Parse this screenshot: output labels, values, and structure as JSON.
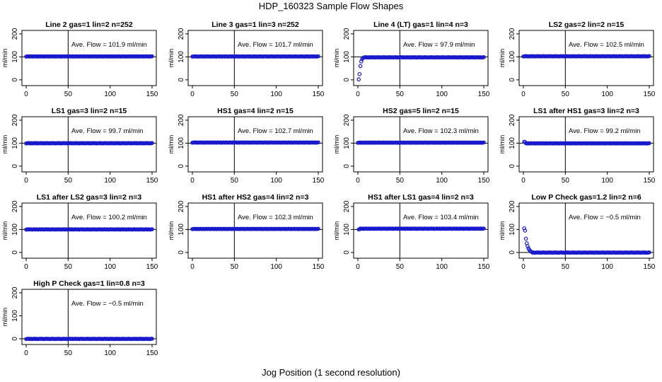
{
  "title": "HDP_160323  Sample Flow Shapes",
  "xlabel": "Jog Position (1 second resolution)",
  "colors": {
    "points": "#1a1acc",
    "axes": "#000000"
  },
  "chart_data": [
    {
      "type": "scatter",
      "title": "Line 2 gas=1 lin=2 n=252",
      "annotation": "Ave. Flow = 101.9  ml/min",
      "ylabel": "ml/min",
      "xlim": [
        0,
        150
      ],
      "ylim": [
        -25,
        215
      ],
      "xticks": [
        0,
        50,
        100,
        150
      ],
      "yticks": [
        0,
        100,
        200
      ],
      "vline": 50,
      "hline": 100,
      "shape": "flat",
      "level": 101.9,
      "x_range": [
        0,
        150
      ]
    },
    {
      "type": "scatter",
      "title": "Line 3 gas=1 lin=3 n=252",
      "annotation": "Ave. Flow = 101.7  ml/min",
      "ylabel": "ml/min",
      "xlim": [
        0,
        150
      ],
      "ylim": [
        -25,
        215
      ],
      "xticks": [
        0,
        50,
        100,
        150
      ],
      "yticks": [
        0,
        100,
        200
      ],
      "vline": 50,
      "hline": 100,
      "shape": "flat",
      "level": 101.7,
      "x_range": [
        0,
        150
      ]
    },
    {
      "type": "scatter",
      "title": "Line 4 (LT) gas=1 lin=4 n=3",
      "annotation": "Ave. Flow = 97.9  ml/min",
      "ylabel": "ml/min",
      "xlim": [
        0,
        150
      ],
      "ylim": [
        -25,
        215
      ],
      "xticks": [
        0,
        50,
        100,
        150
      ],
      "yticks": [
        0,
        100,
        200
      ],
      "vline": 50,
      "hline": 100,
      "shape": "rise",
      "level": 97.9,
      "x_range": [
        0,
        150
      ],
      "start_points": [
        [
          1,
          2
        ],
        [
          2,
          25
        ],
        [
          3,
          60
        ],
        [
          4,
          80
        ],
        [
          5,
          90
        ],
        [
          6,
          95
        ],
        [
          7,
          97
        ],
        [
          8,
          98
        ]
      ]
    },
    {
      "type": "scatter",
      "title": "LS2 gas=2 lin=2 n=15",
      "annotation": "Ave. Flow = 102.5  ml/min",
      "ylabel": "ml/min",
      "xlim": [
        0,
        150
      ],
      "ylim": [
        -25,
        215
      ],
      "xticks": [
        0,
        50,
        100,
        150
      ],
      "yticks": [
        0,
        100,
        200
      ],
      "vline": 50,
      "hline": 100,
      "shape": "flat",
      "level": 102.5,
      "x_range": [
        0,
        150
      ]
    },
    {
      "type": "scatter",
      "title": "LS1 gas=3 lin=2 n=15",
      "annotation": "Ave. Flow = 99.7  ml/min",
      "ylabel": "ml/min",
      "xlim": [
        0,
        150
      ],
      "ylim": [
        -25,
        215
      ],
      "xticks": [
        0,
        50,
        100,
        150
      ],
      "yticks": [
        0,
        100,
        200
      ],
      "vline": 50,
      "hline": 100,
      "shape": "flat",
      "level": 99.7,
      "x_range": [
        0,
        150
      ]
    },
    {
      "type": "scatter",
      "title": "HS1 gas=4 lin=2 n=15",
      "annotation": "Ave. Flow = 102.7  ml/min",
      "ylabel": "ml/min",
      "xlim": [
        0,
        150
      ],
      "ylim": [
        -25,
        215
      ],
      "xticks": [
        0,
        50,
        100,
        150
      ],
      "yticks": [
        0,
        100,
        200
      ],
      "vline": 50,
      "hline": 100,
      "shape": "flat",
      "level": 102.7,
      "x_range": [
        0,
        150
      ]
    },
    {
      "type": "scatter",
      "title": "HS2 gas=5 lin=2 n=15",
      "annotation": "Ave. Flow = 102.3  ml/min",
      "ylabel": "ml/min",
      "xlim": [
        0,
        150
      ],
      "ylim": [
        -25,
        215
      ],
      "xticks": [
        0,
        50,
        100,
        150
      ],
      "yticks": [
        0,
        100,
        200
      ],
      "vline": 50,
      "hline": 100,
      "shape": "flat",
      "level": 102.3,
      "x_range": [
        0,
        150
      ]
    },
    {
      "type": "scatter",
      "title": "LS1 after HS1 gas=3 lin=2 n=3",
      "annotation": "Ave. Flow = 99.2  ml/min",
      "ylabel": "ml/min",
      "xlim": [
        0,
        150
      ],
      "ylim": [
        -25,
        215
      ],
      "xticks": [
        0,
        50,
        100,
        150
      ],
      "yticks": [
        0,
        100,
        200
      ],
      "vline": 50,
      "hline": 100,
      "shape": "flat",
      "level": 99.2,
      "x_range": [
        0,
        150
      ],
      "start_points": [
        [
          1,
          106
        ],
        [
          2,
          105
        ]
      ]
    },
    {
      "type": "scatter",
      "title": "LS1 after LS2 gas=3 lin=2 n=3",
      "annotation": "Ave. Flow = 100.2  ml/min",
      "ylabel": "ml/min",
      "xlim": [
        0,
        150
      ],
      "ylim": [
        -25,
        215
      ],
      "xticks": [
        0,
        50,
        100,
        150
      ],
      "yticks": [
        0,
        100,
        200
      ],
      "vline": 50,
      "hline": 100,
      "shape": "flat",
      "level": 100.2,
      "x_range": [
        0,
        150
      ]
    },
    {
      "type": "scatter",
      "title": "HS1 after HS2 gas=4 lin=2 n=3",
      "annotation": "Ave. Flow = 102.3  ml/min",
      "ylabel": "ml/min",
      "xlim": [
        0,
        150
      ],
      "ylim": [
        -25,
        215
      ],
      "xticks": [
        0,
        50,
        100,
        150
      ],
      "yticks": [
        0,
        100,
        200
      ],
      "vline": 50,
      "hline": 100,
      "shape": "flat",
      "level": 102.3,
      "x_range": [
        0,
        150
      ]
    },
    {
      "type": "scatter",
      "title": "HS1 after LS1 gas=4 lin=2 n=3",
      "annotation": "Ave. Flow = 103.4  ml/min",
      "ylabel": "ml/min",
      "xlim": [
        0,
        150
      ],
      "ylim": [
        -25,
        215
      ],
      "xticks": [
        0,
        50,
        100,
        150
      ],
      "yticks": [
        0,
        100,
        200
      ],
      "vline": 50,
      "hline": 100,
      "shape": "flat",
      "level": 103.4,
      "x_range": [
        0,
        150
      ],
      "start_points": [
        [
          1,
          100
        ],
        [
          2,
          101
        ]
      ]
    },
    {
      "type": "scatter",
      "title": "Low P Check gas=1.2 lin=2 n=6",
      "annotation": "Ave. Flow = −0.5  ml/min",
      "ylabel": "ml/min",
      "xlim": [
        0,
        150
      ],
      "ylim": [
        -25,
        215
      ],
      "xticks": [
        0,
        50,
        100,
        150
      ],
      "yticks": [
        0,
        100,
        200
      ],
      "vline": 50,
      "hline": 0,
      "shape": "decay",
      "level": -0.5,
      "x_range": [
        0,
        150
      ],
      "start_points": [
        [
          1,
          105
        ],
        [
          2,
          95
        ],
        [
          3,
          60
        ],
        [
          4,
          40
        ],
        [
          5,
          28
        ],
        [
          6,
          18
        ],
        [
          7,
          12
        ],
        [
          8,
          7
        ],
        [
          9,
          4
        ],
        [
          10,
          2
        ]
      ]
    },
    {
      "type": "scatter",
      "title": "High P Check gas=1 lin=0.8 n=3",
      "annotation": "Ave. Flow = −0.5  ml/min",
      "ylabel": "ml/min",
      "xlim": [
        0,
        150
      ],
      "ylim": [
        -25,
        215
      ],
      "xticks": [
        0,
        50,
        100,
        150
      ],
      "yticks": [
        0,
        100,
        200
      ],
      "vline": 50,
      "hline": 0,
      "shape": "flat",
      "level": -0.5,
      "x_range": [
        0,
        150
      ]
    }
  ]
}
